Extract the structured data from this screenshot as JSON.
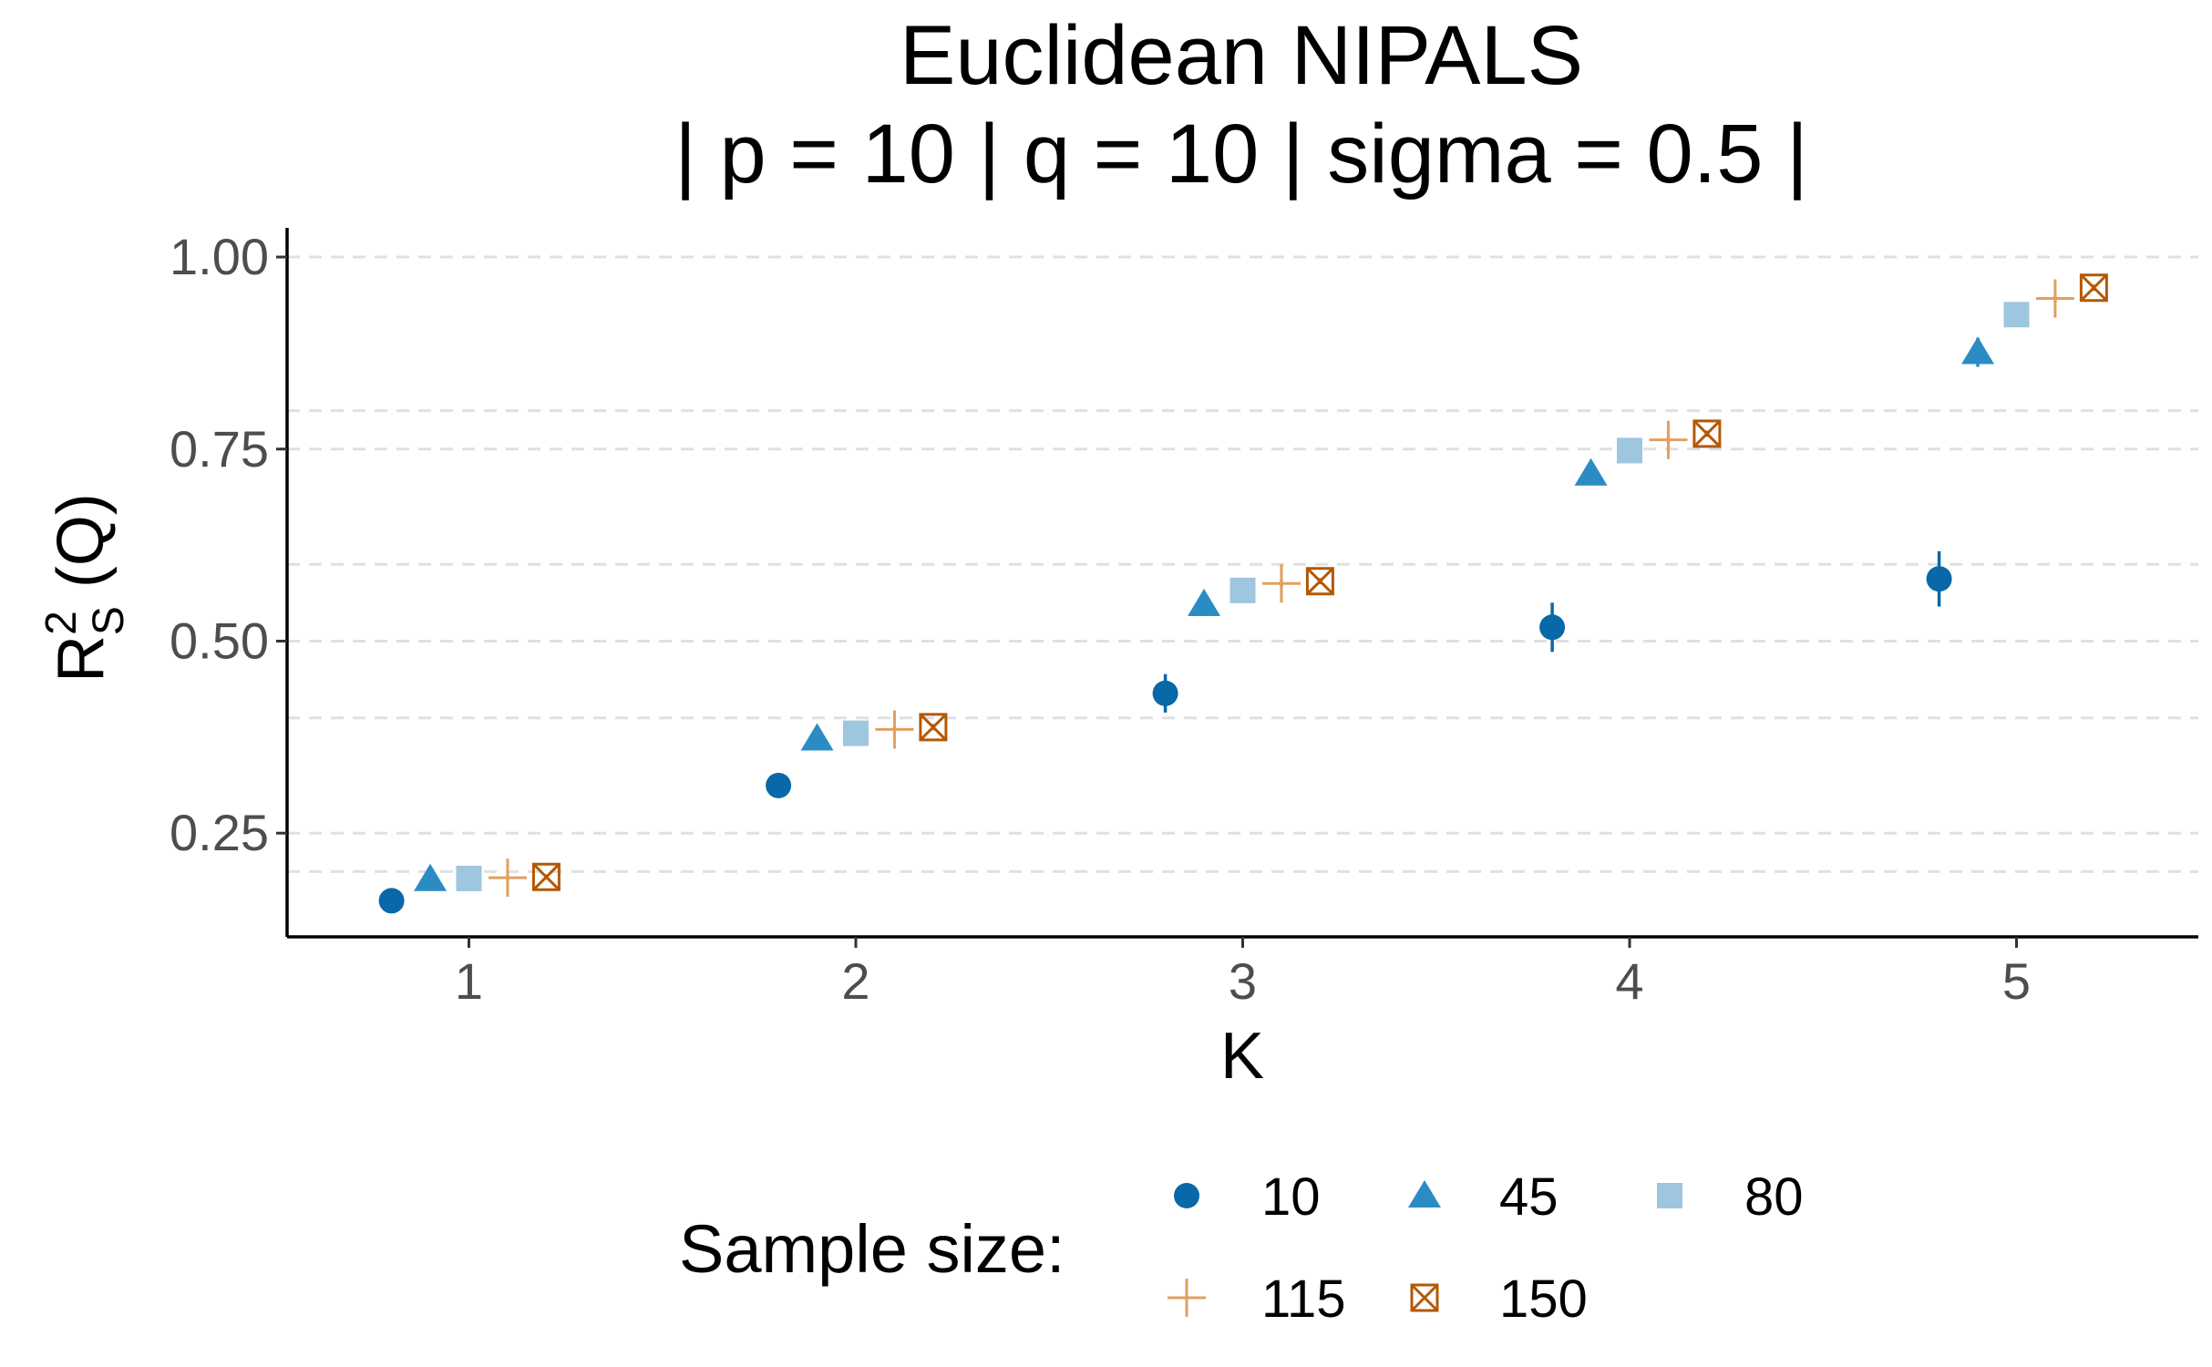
{
  "chart_data": {
    "type": "scatter",
    "title": "Euclidean NIPALS",
    "subtitle": "| p = 10 | q = 10 | sigma = 0.5 |",
    "xlabel": "K",
    "ylabel_main": "R",
    "ylabel_sup": "2",
    "ylabel_sub": "S",
    "ylabel_rest": " (Q)",
    "categories": [
      "1",
      "2",
      "3",
      "4",
      "5"
    ],
    "x_ticks": [
      1,
      2,
      3,
      4,
      5
    ],
    "xlim": [
      0.53,
      5.47
    ],
    "y_ticks": [
      0.25,
      0.5,
      0.75,
      1.0
    ],
    "y_tick_labels": [
      "0.25",
      "0.50",
      "0.75",
      "1.00"
    ],
    "y_minor_grid": [
      0.2,
      0.4,
      0.6,
      0.8
    ],
    "ylim": [
      0.115,
      1.038
    ],
    "grid": "horizontal dashed",
    "legend_position": "bottom",
    "legend_title": "Sample size:",
    "series": [
      {
        "name": "10",
        "shape": "circle",
        "color": "#0868a8",
        "offset": -0.2,
        "values": [
          0.162,
          0.312,
          0.432,
          0.518,
          0.581
        ],
        "err": [
          0.006,
          0.008,
          0.025,
          0.032,
          0.036
        ]
      },
      {
        "name": "45",
        "shape": "triangle",
        "color": "#2b8cc4",
        "offset": -0.1,
        "values": [
          0.19,
          0.373,
          0.548,
          0.718,
          0.876
        ],
        "err": [
          0.005,
          0.006,
          0.007,
          0.01,
          0.019
        ]
      },
      {
        "name": "80",
        "shape": "square",
        "color": "#9ec6de",
        "offset": 0.0,
        "values": [
          0.191,
          0.38,
          0.566,
          0.748,
          0.925
        ],
        "err": [
          0.004,
          0.005,
          0.006,
          0.005,
          0.006
        ]
      },
      {
        "name": "115",
        "shape": "plus",
        "color": "#e0a060",
        "offset": 0.1,
        "values": [
          0.192,
          0.385,
          0.575,
          0.762,
          0.946
        ],
        "err": [
          0.003,
          0.004,
          0.005,
          0.004,
          0.005
        ]
      },
      {
        "name": "150",
        "shape": "boxx",
        "color": "#b35806",
        "offset": 0.2,
        "values": [
          0.193,
          0.388,
          0.578,
          0.77,
          0.96
        ],
        "err": [
          0.003,
          0.004,
          0.004,
          0.004,
          0.004
        ]
      }
    ]
  }
}
